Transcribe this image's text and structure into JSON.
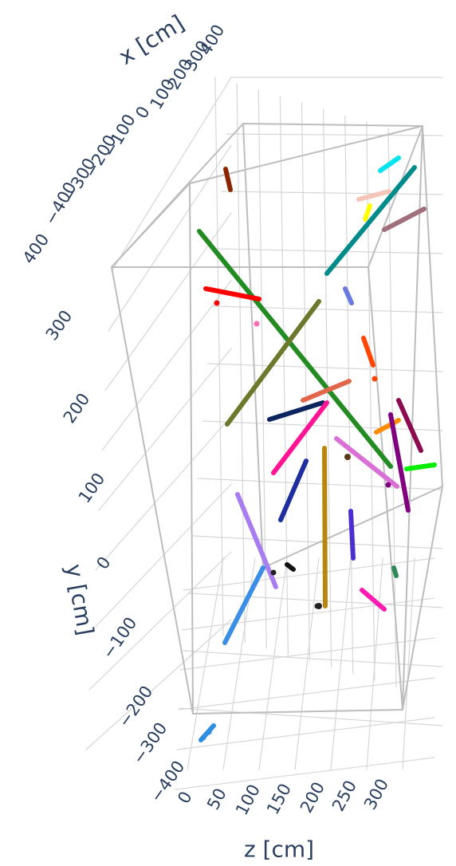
{
  "chart_data": {
    "type": "scatter3d",
    "title": "",
    "xlabel": "x [cm]",
    "ylabel": "y [cm]",
    "zlabel": "z [cm]",
    "xlim": [
      -400,
      400
    ],
    "ylim": [
      -400,
      400
    ],
    "zlim": [
      0,
      300
    ],
    "x_ticks": [
      "400",
      "300",
      "200",
      "100",
      "0",
      "−100",
      "−200",
      "−300",
      "−400"
    ],
    "y_ticks": [
      "400",
      "300",
      "200",
      "100",
      "0",
      "−100",
      "−200",
      "−300",
      "−400"
    ],
    "z_ticks": [
      "0",
      "50",
      "100",
      "150",
      "200",
      "250",
      "300"
    ],
    "grid": true,
    "legend": "none",
    "series": [
      {
        "color": "#228b22",
        "points": [
          [
            250,
            290
          ],
          [
            490,
            585
          ]
        ]
      },
      {
        "color": "#6b7a2a",
        "points": [
          [
            285,
            532
          ],
          [
            400,
            378
          ]
        ]
      },
      {
        "color": "#ff0000",
        "points": [
          [
            258,
            362
          ],
          [
            325,
            375
          ]
        ]
      },
      {
        "color": "#008b8b",
        "points": [
          [
            410,
            343
          ],
          [
            520,
            210
          ]
        ]
      },
      {
        "color": "#00e5ee",
        "points": [
          [
            477,
            214
          ],
          [
            500,
            198
          ]
        ]
      },
      {
        "color": "#f5c6b8",
        "points": [
          [
            450,
            250
          ],
          [
            488,
            240
          ]
        ]
      },
      {
        "color": "#ffff00",
        "points": [
          [
            458,
            275
          ],
          [
            464,
            258
          ]
        ]
      },
      {
        "color": "#a0707a",
        "points": [
          [
            482,
            288
          ],
          [
            532,
            262
          ]
        ]
      },
      {
        "color": "#8b2500",
        "points": [
          [
            283,
            212
          ],
          [
            289,
            238
          ]
        ]
      },
      {
        "color": "#6a7ae0",
        "points": [
          [
            433,
            362
          ],
          [
            441,
            380
          ]
        ]
      },
      {
        "color": "#ff4500",
        "points": [
          [
            456,
            424
          ],
          [
            468,
            458
          ]
        ]
      },
      {
        "color": "#e2664a",
        "points": [
          [
            380,
            502
          ],
          [
            438,
            478
          ]
        ]
      },
      {
        "color": "#0c2460",
        "points": [
          [
            338,
            526
          ],
          [
            405,
            505
          ]
        ]
      },
      {
        "color": "#ff1493",
        "points": [
          [
            343,
            593
          ],
          [
            410,
            505
          ]
        ]
      },
      {
        "color": "#b8860b",
        "points": [
          [
            407,
            562
          ],
          [
            408,
            760
          ]
        ]
      },
      {
        "color": "#1f2e9e",
        "points": [
          [
            352,
            652
          ],
          [
            384,
            578
          ]
        ]
      },
      {
        "color": "#4d2fd0",
        "points": [
          [
            440,
            641
          ],
          [
            443,
            700
          ]
        ]
      },
      {
        "color": "#da70d6",
        "points": [
          [
            422,
            550
          ],
          [
            498,
            610
          ]
        ]
      },
      {
        "color": "#ff8c00",
        "points": [
          [
            472,
            542
          ],
          [
            500,
            527
          ]
        ]
      },
      {
        "color": "#8b0a50",
        "points": [
          [
            500,
            502
          ],
          [
            528,
            565
          ]
        ]
      },
      {
        "color": "#800080",
        "points": [
          [
            490,
            520
          ],
          [
            512,
            640
          ]
        ]
      },
      {
        "color": "#00ee00",
        "points": [
          [
            510,
            588
          ],
          [
            545,
            583
          ]
        ]
      },
      {
        "color": "#ff1ab3",
        "points": [
          [
            454,
            740
          ],
          [
            482,
            764
          ]
        ]
      },
      {
        "color": "#2e8b57",
        "points": [
          [
            494,
            712
          ],
          [
            497,
            722
          ]
        ]
      },
      {
        "color": "#a77df0",
        "points": [
          [
            298,
            620
          ],
          [
            346,
            736
          ]
        ]
      },
      {
        "color": "#3a8ee6",
        "points": [
          [
            282,
            806
          ],
          [
            330,
            712
          ]
        ]
      },
      {
        "color": "#2e8fe0",
        "points": [
          [
            252,
            928
          ],
          [
            268,
            910
          ]
        ]
      },
      {
        "color": "#111111",
        "points": [
          [
            360,
            708
          ],
          [
            368,
            714
          ]
        ]
      },
      {
        "color": "#222222",
        "points": [
          [
            400,
            760
          ],
          [
            402,
            760
          ]
        ]
      },
      {
        "color": "#5a3a1a",
        "points": [
          [
            436,
            573
          ],
          [
            436,
            573
          ]
        ]
      }
    ]
  }
}
